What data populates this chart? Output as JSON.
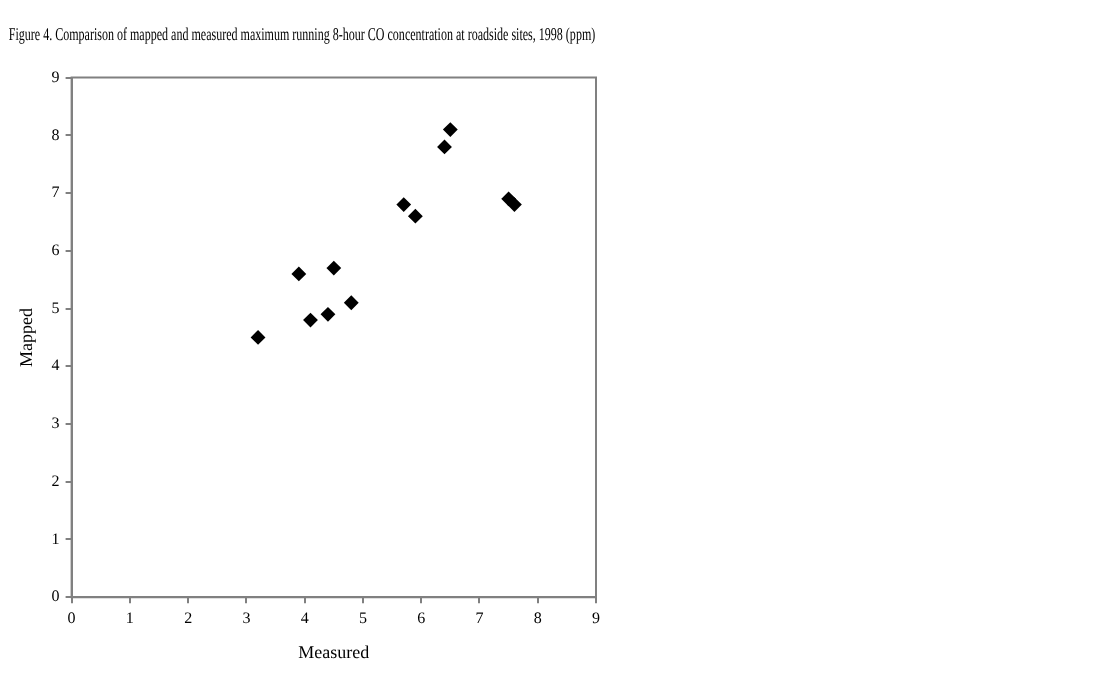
{
  "chart_data": {
    "type": "scatter",
    "title": "Figure 4. Comparison of mapped and measured maximum running 8-hour CO concentration at roadside sites, 1998 (ppm)",
    "xlabel": "Measured",
    "ylabel": "Mapped",
    "x": [
      3.2,
      3.9,
      4.1,
      4.4,
      4.5,
      4.8,
      5.7,
      5.9,
      6.4,
      6.5,
      7.5,
      7.6
    ],
    "values": [
      4.5,
      5.6,
      4.8,
      4.9,
      5.7,
      5.1,
      6.8,
      6.6,
      7.8,
      8.1,
      6.9,
      6.8
    ],
    "color": "#000000",
    "marker": "diamond",
    "xlim": [
      0,
      9
    ],
    "xticks": [
      0,
      1,
      2,
      3,
      4,
      5,
      6,
      7,
      8,
      9
    ],
    "ylim": [
      0,
      9
    ],
    "yticks": [
      0,
      1,
      2,
      3,
      4,
      5,
      6,
      7,
      8,
      9
    ],
    "grid": false,
    "legend": false
  }
}
